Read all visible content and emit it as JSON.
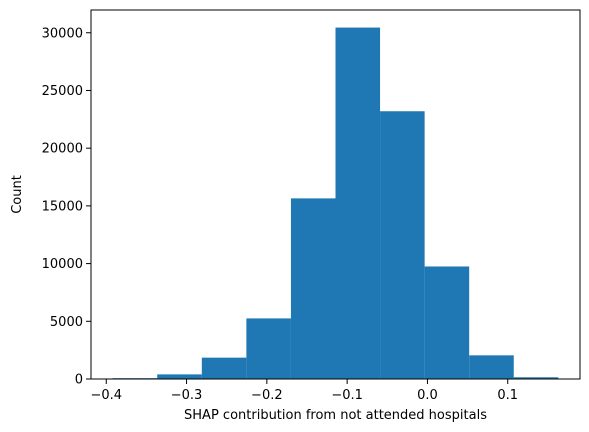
{
  "chart_data": {
    "type": "bar",
    "subtype": "histogram",
    "title": "",
    "xlabel": "SHAP contribution from not attended hospitals",
    "ylabel": "Count",
    "bin_edges": [
      -0.392,
      -0.3365,
      -0.281,
      -0.2255,
      -0.17,
      -0.1145,
      -0.059,
      -0.0035,
      0.052,
      0.1075,
      0.163
    ],
    "values": [
      70,
      400,
      1850,
      5250,
      15650,
      30450,
      23200,
      9750,
      2050,
      150
    ],
    "xlim": [
      -0.419,
      0.19
    ],
    "ylim": [
      0,
      31972
    ],
    "x_ticks": [
      -0.4,
      -0.3,
      -0.2,
      -0.1,
      0.0,
      0.1
    ],
    "x_tick_labels": [
      "−0.4",
      "−0.3",
      "−0.2",
      "−0.1",
      "0.0",
      "0.1"
    ],
    "y_ticks": [
      0,
      5000,
      10000,
      15000,
      20000,
      25000,
      30000
    ],
    "y_tick_labels": [
      "0",
      "5000",
      "10000",
      "15000",
      "20000",
      "25000",
      "30000"
    ],
    "bar_color": "#1f77b4",
    "grid": false,
    "legend": "none"
  }
}
